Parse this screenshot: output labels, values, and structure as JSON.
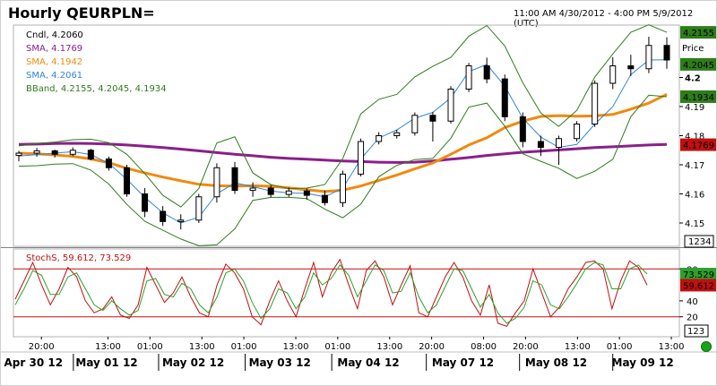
{
  "header": {
    "title": "Hourly QEURPLN=",
    "range": "11:00 AM 4/30/2012 - 4:00 PM 5/9/2012 (UTC)"
  },
  "colors": {
    "candle": "#000000",
    "sma_long": "#8b1f8b",
    "sma_mid": "#f08a10",
    "sma_short": "#2f86d6",
    "bband": "#2e7d1b",
    "stoch_k": "#c01010",
    "stoch_d": "#2ea02e",
    "ref_line": "#c01010"
  },
  "chart_data": [
    {
      "type": "line",
      "name": "price-panel",
      "legend": [
        {
          "label": "Cndl, 4.2060",
          "color": "#000000"
        },
        {
          "label": "SMA, 4.1769",
          "color": "#8b1f8b"
        },
        {
          "label": "SMA, 4.1942",
          "color": "#f08a10"
        },
        {
          "label": "SMA, 4.2061",
          "color": "#2f86d6"
        },
        {
          "label": "BBand, 4.2155, 4.2045, 4.1934",
          "color": "#2e7d1b"
        }
      ],
      "price_label": "Price",
      "ylim": [
        4.142,
        4.218
      ],
      "yticks": [
        "4.2",
        "4.19",
        "4.18",
        "4.17",
        "4.16",
        "4.15"
      ],
      "ytick_values": [
        4.2,
        4.19,
        4.18,
        4.17,
        4.16,
        4.15
      ],
      "value_tags": [
        {
          "text": "4.2155",
          "value": 4.2155,
          "bg": "#2e7d1b"
        },
        {
          "text": "4.2045",
          "value": 4.2045,
          "bg": "#2e7d1b"
        },
        {
          "text": "4.1934",
          "value": 4.1934,
          "bg": "#2e7d1b"
        },
        {
          "text": "4.1769",
          "value": 4.1769,
          "bg": "#c01010"
        }
      ],
      "counter": "1234",
      "series": [
        {
          "name": "SMA",
          "key": "sma_long",
          "values": [
            4.177,
            4.1771,
            4.1773,
            4.1774,
            4.1773,
            4.1771,
            4.1768,
            4.1764,
            4.1759,
            4.1754,
            4.1748,
            4.1742,
            4.1736,
            4.1731,
            4.1726,
            4.1722,
            4.1719,
            4.1716,
            4.1713,
            4.1711,
            4.1709,
            4.1708,
            4.1709,
            4.1713,
            4.1719,
            4.1725,
            4.1732,
            4.1738,
            4.1743,
            4.1747,
            4.1751,
            4.1755,
            4.1759,
            4.1762,
            4.1765,
            4.1768,
            4.177
          ]
        },
        {
          "name": "SMA",
          "key": "sma_mid",
          "values": [
            4.174,
            4.1738,
            4.1734,
            4.1729,
            4.172,
            4.1707,
            4.1688,
            4.1672,
            4.1658,
            4.1645,
            4.1633,
            4.1628,
            4.1627,
            4.1628,
            4.1626,
            4.1621,
            4.1614,
            4.1608,
            4.1613,
            4.1627,
            4.1646,
            4.1665,
            4.1686,
            4.1706,
            4.1736,
            4.1768,
            4.1793,
            4.1828,
            4.185,
            4.1866,
            4.1869,
            4.1867,
            4.1868,
            4.1873,
            4.1891,
            4.1912,
            4.1942
          ]
        },
        {
          "name": "SMA",
          "key": "sma_short",
          "values": [
            4.173,
            4.1735,
            4.174,
            4.1745,
            4.1735,
            4.1705,
            4.165,
            4.1588,
            4.1535,
            4.15,
            4.152,
            4.16,
            4.1638,
            4.1625,
            4.161,
            4.1603,
            4.1602,
            4.159,
            4.162,
            4.172,
            4.1792,
            4.182,
            4.186,
            4.188,
            4.193,
            4.202,
            4.2045,
            4.197,
            4.186,
            4.1795,
            4.176,
            4.177,
            4.184,
            4.19,
            4.201,
            4.206,
            4.2061
          ]
        },
        {
          "name": "BBand",
          "key": "bband_up",
          "values": [
            4.1765,
            4.1773,
            4.1778,
            4.1786,
            4.1788,
            4.1776,
            4.1736,
            4.167,
            4.1595,
            4.1555,
            4.1618,
            4.1775,
            4.1796,
            4.1672,
            4.1632,
            4.1618,
            4.162,
            4.1632,
            4.1722,
            4.1875,
            4.1925,
            4.1942,
            4.2002,
            4.2038,
            4.2069,
            4.2142,
            4.2178,
            4.2108,
            4.1982,
            4.1878,
            4.1832,
            4.1887,
            4.2002,
            4.2081,
            4.2155,
            4.2181,
            4.2155
          ]
        },
        {
          "name": "BBand",
          "key": "bband_lo",
          "values": [
            4.1695,
            4.1697,
            4.1702,
            4.1704,
            4.1682,
            4.1634,
            4.1564,
            4.1506,
            4.1475,
            4.1445,
            4.1422,
            4.1425,
            4.148,
            4.1578,
            4.1588,
            4.1588,
            4.1584,
            4.1548,
            4.1518,
            4.1565,
            4.1659,
            4.1698,
            4.1718,
            4.1722,
            4.1791,
            4.1898,
            4.1912,
            4.1832,
            4.1738,
            4.1712,
            4.1688,
            4.1653,
            4.1678,
            4.1719,
            4.1865,
            4.1939,
            4.1934
          ]
        }
      ],
      "candles": [
        [
          4.1732,
          4.1748,
          4.1712,
          4.174
        ],
        [
          4.174,
          4.1758,
          4.1728,
          4.1748
        ],
        [
          4.1748,
          4.1752,
          4.1725,
          4.1736
        ],
        [
          4.1736,
          4.176,
          4.173,
          4.175
        ],
        [
          4.175,
          4.1755,
          4.1715,
          4.172
        ],
        [
          4.172,
          4.1728,
          4.168,
          4.169
        ],
        [
          4.169,
          4.17,
          4.159,
          4.16
        ],
        [
          4.16,
          4.162,
          4.152,
          4.154
        ],
        [
          4.154,
          4.1558,
          4.149,
          4.1505
        ],
        [
          4.1505,
          4.153,
          4.1478,
          4.151
        ],
        [
          4.151,
          4.16,
          4.15,
          4.159
        ],
        [
          4.159,
          4.1705,
          4.157,
          4.169
        ],
        [
          4.169,
          4.171,
          4.16,
          4.1612
        ],
        [
          4.1612,
          4.164,
          4.159,
          4.162
        ],
        [
          4.162,
          4.163,
          4.1588,
          4.1598
        ],
        [
          4.1598,
          4.1622,
          4.159,
          4.161
        ],
        [
          4.161,
          4.1618,
          4.158,
          4.1595
        ],
        [
          4.1595,
          4.1612,
          4.156,
          4.157
        ],
        [
          4.157,
          4.168,
          4.1555,
          4.1668
        ],
        [
          4.1668,
          4.179,
          4.166,
          4.178
        ],
        [
          4.178,
          4.1812,
          4.177,
          4.18
        ],
        [
          4.18,
          4.182,
          4.179,
          4.181
        ],
        [
          4.181,
          4.188,
          4.18,
          4.187
        ],
        [
          4.187,
          4.1882,
          4.178,
          4.185
        ],
        [
          4.185,
          4.197,
          4.1842,
          4.196
        ],
        [
          4.196,
          4.205,
          4.195,
          4.204
        ],
        [
          4.204,
          4.2068,
          4.198,
          4.1995
        ],
        [
          4.1995,
          4.201,
          4.185,
          4.1865
        ],
        [
          4.1865,
          4.188,
          4.176,
          4.178
        ],
        [
          4.178,
          4.18,
          4.173,
          4.176
        ],
        [
          4.176,
          4.18,
          4.17,
          4.179
        ],
        [
          4.179,
          4.185,
          4.178,
          4.184
        ],
        [
          4.184,
          4.199,
          4.183,
          4.198
        ],
        [
          4.198,
          4.207,
          4.196,
          4.204
        ],
        [
          4.204,
          4.2078,
          4.2005,
          4.203
        ],
        [
          4.203,
          4.214,
          4.2015,
          4.211
        ],
        [
          4.211,
          4.2138,
          4.203,
          4.206
        ]
      ]
    },
    {
      "type": "line",
      "name": "stochastic-panel",
      "legend": [
        {
          "label": "StochS, 59.612, 73.529",
          "color": "#c01010"
        }
      ],
      "ylim": [
        -5,
        105
      ],
      "yticks": [
        "80",
        "40",
        "20"
      ],
      "ytick_values": [
        80,
        40,
        20
      ],
      "ref_lines": [
        80,
        20
      ],
      "value_tags": [
        {
          "text": "73.529",
          "value": 73.529,
          "bg": "#2ea02e"
        },
        {
          "text": "59.612",
          "value": 59.612,
          "bg": "#c01010"
        }
      ],
      "counter": "123",
      "series": [
        {
          "name": "StochS %K",
          "key": "stoch_k",
          "values": [
            42,
            65,
            88,
            60,
            35,
            55,
            82,
            70,
            40,
            25,
            30,
            45,
            22,
            18,
            35,
            82,
            60,
            38,
            50,
            70,
            45,
            25,
            20,
            60,
            86,
            75,
            55,
            20,
            10,
            40,
            65,
            40,
            20,
            55,
            88,
            45,
            75,
            92,
            60,
            30,
            78,
            90,
            70,
            35,
            60,
            84,
            25,
            20,
            45,
            70,
            88,
            70,
            40,
            22,
            60,
            12,
            8,
            25,
            40,
            80,
            50,
            20,
            32,
            55,
            70,
            88,
            90,
            80,
            30,
            65,
            90,
            82,
            59.612
          ]
        },
        {
          "name": "StochS %D",
          "key": "stoch_d",
          "values": [
            35,
            55,
            78,
            72,
            48,
            48,
            70,
            75,
            55,
            35,
            28,
            40,
            30,
            22,
            28,
            65,
            68,
            48,
            45,
            62,
            55,
            35,
            25,
            45,
            75,
            80,
            65,
            38,
            18,
            30,
            55,
            50,
            30,
            45,
            75,
            60,
            68,
            85,
            72,
            45,
            65,
            85,
            78,
            50,
            52,
            75,
            45,
            25,
            35,
            58,
            80,
            78,
            55,
            32,
            48,
            25,
            12,
            18,
            32,
            65,
            60,
            35,
            30,
            45,
            62,
            80,
            88,
            85,
            55,
            55,
            80,
            85,
            73.529
          ]
        }
      ]
    }
  ],
  "x_axis": {
    "time_labels": [
      "20:00",
      "13:00",
      "01:00",
      "13:00",
      "01:00",
      "13:00",
      "01:00",
      "13:00",
      "20:00",
      "08:00",
      "20:00",
      "13:00",
      "01:00",
      "13:00"
    ],
    "time_positions": [
      0.042,
      0.142,
      0.205,
      0.283,
      0.346,
      0.424,
      0.487,
      0.565,
      0.628,
      0.706,
      0.769,
      0.847,
      0.91,
      0.988
    ],
    "date_labels": [
      "Apr 30 12",
      "May 01 12",
      "May 02 12",
      "May 03 12",
      "May 04 12",
      "May 07 12",
      "May 08 12",
      "May 09 12"
    ],
    "date_positions": [
      0.03,
      0.14,
      0.27,
      0.4,
      0.533,
      0.675,
      0.815,
      0.945
    ],
    "separators": [
      0.09,
      0.218,
      0.348,
      0.478,
      0.62,
      0.76,
      0.9
    ]
  }
}
